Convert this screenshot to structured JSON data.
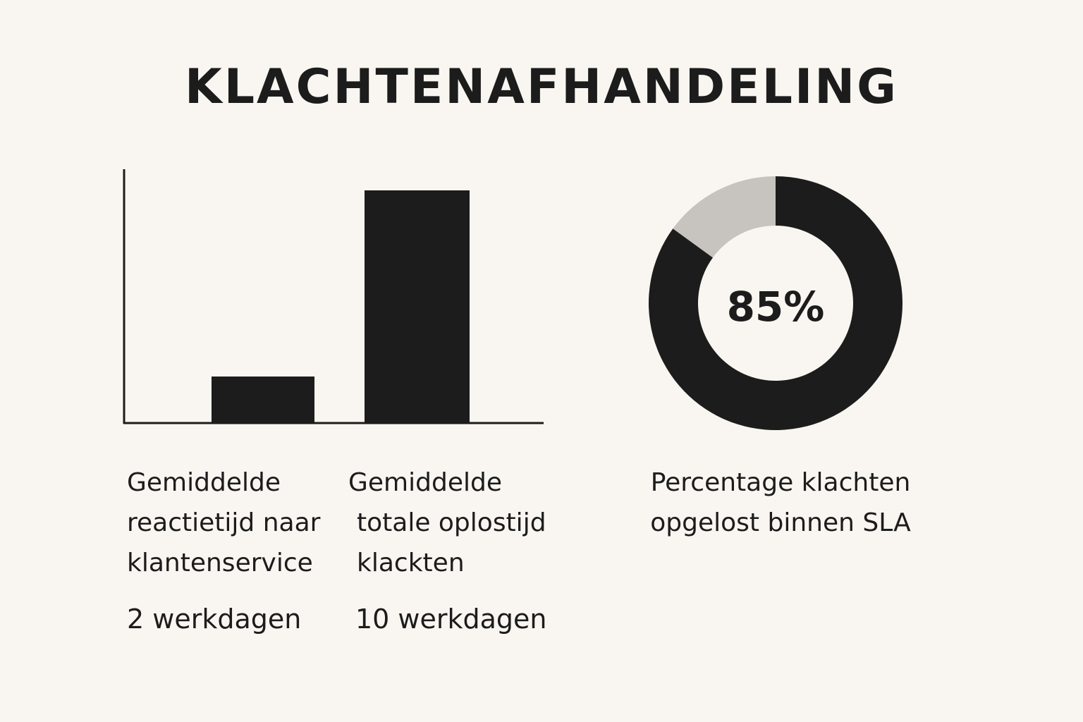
{
  "title": "KLACHTENAFHANDELING",
  "colors": {
    "background": "#f9f6f1",
    "dark": "#1c1c1c",
    "light_gray": "#c7c3be"
  },
  "chart_data": [
    {
      "type": "bar",
      "categories": [
        "Gemiddelde reactietijd naar klantenservice",
        "Gemiddelde totale oplostijd klackten"
      ],
      "values": [
        2,
        10
      ],
      "value_labels": [
        "2 werkdagen",
        "10 werkdagen"
      ],
      "caption_lines": [
        [
          "Gemiddelde",
          "reactietijd naar",
          "klantenservice"
        ],
        [
          "Gemiddelde",
          "totale oplostijd",
          "klackten"
        ]
      ],
      "grid": false,
      "legend": "none"
    },
    {
      "type": "pie",
      "variant": "donut",
      "values": [
        85,
        15
      ],
      "center_label": "85%",
      "caption_lines": [
        "Percentage klachten",
        "opgelost binnen SLA"
      ]
    }
  ]
}
